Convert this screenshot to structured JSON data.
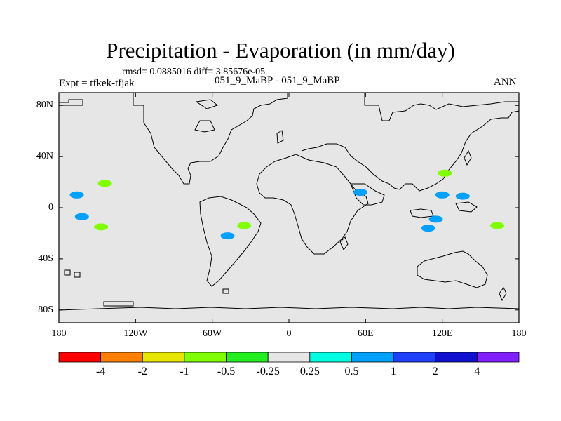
{
  "header": {
    "title": "Precipitation - Evaporation (in mm/day)",
    "stats": "rmsd= 0.0885016 diff= 3.85676e-05",
    "experiment": "Expt = tfkek-tfjak",
    "case": "051_9_MaBP - 051_9_MaBP",
    "season": "ANN"
  },
  "map": {
    "projection": "cylindrical equidistant",
    "lon_range": [
      -180,
      180
    ],
    "lat_range": [
      -90,
      90
    ],
    "background_color": "#e6e6e6",
    "lat_ticks": [
      {
        "value": 80,
        "label": "80N"
      },
      {
        "value": 40,
        "label": "40N"
      },
      {
        "value": 0,
        "label": "0"
      },
      {
        "value": -40,
        "label": "40S"
      },
      {
        "value": -80,
        "label": "80S"
      }
    ],
    "lon_ticks": [
      {
        "value": -180,
        "label": "180"
      },
      {
        "value": -120,
        "label": "120W"
      },
      {
        "value": -60,
        "label": "60W"
      },
      {
        "value": 0,
        "label": "0"
      },
      {
        "value": 60,
        "label": "60E"
      },
      {
        "value": 120,
        "label": "120E"
      },
      {
        "value": 180,
        "label": "180"
      }
    ]
  },
  "colorbar": {
    "colors": [
      "#ff0000",
      "#ff8000",
      "#e6e600",
      "#80ff00",
      "#22ee22",
      "#e6e6e6",
      "#00ffe0",
      "#00a0ff",
      "#2040ff",
      "#1010d0",
      "#8020ff"
    ],
    "labels": [
      "-4",
      "-2",
      "-1",
      "-0.5",
      "-0.25",
      "0.25",
      "0.5",
      "1",
      "2",
      "4"
    ]
  },
  "anomalies": [
    {
      "lon": -144,
      "lat": 19,
      "level": "-0.5"
    },
    {
      "lon": -166,
      "lat": 10,
      "level": "0.5"
    },
    {
      "lon": -162,
      "lat": -7,
      "level": "0.5"
    },
    {
      "lon": -147,
      "lat": -15,
      "level": "-0.5"
    },
    {
      "lon": -35,
      "lat": -14,
      "level": "-0.5"
    },
    {
      "lon": -48,
      "lat": -22,
      "level": "0.5"
    },
    {
      "lon": 56,
      "lat": 12,
      "level": "0.5"
    },
    {
      "lon": 120,
      "lat": 10,
      "level": "0.5"
    },
    {
      "lon": 115,
      "lat": -9,
      "level": "0.5"
    },
    {
      "lon": 109,
      "lat": -16,
      "level": "0.5"
    },
    {
      "lon": 163,
      "lat": -14,
      "level": "-0.5"
    },
    {
      "lon": 122,
      "lat": 27,
      "level": "-0.5"
    },
    {
      "lon": 136,
      "lat": 9,
      "level": "0.5"
    }
  ]
}
